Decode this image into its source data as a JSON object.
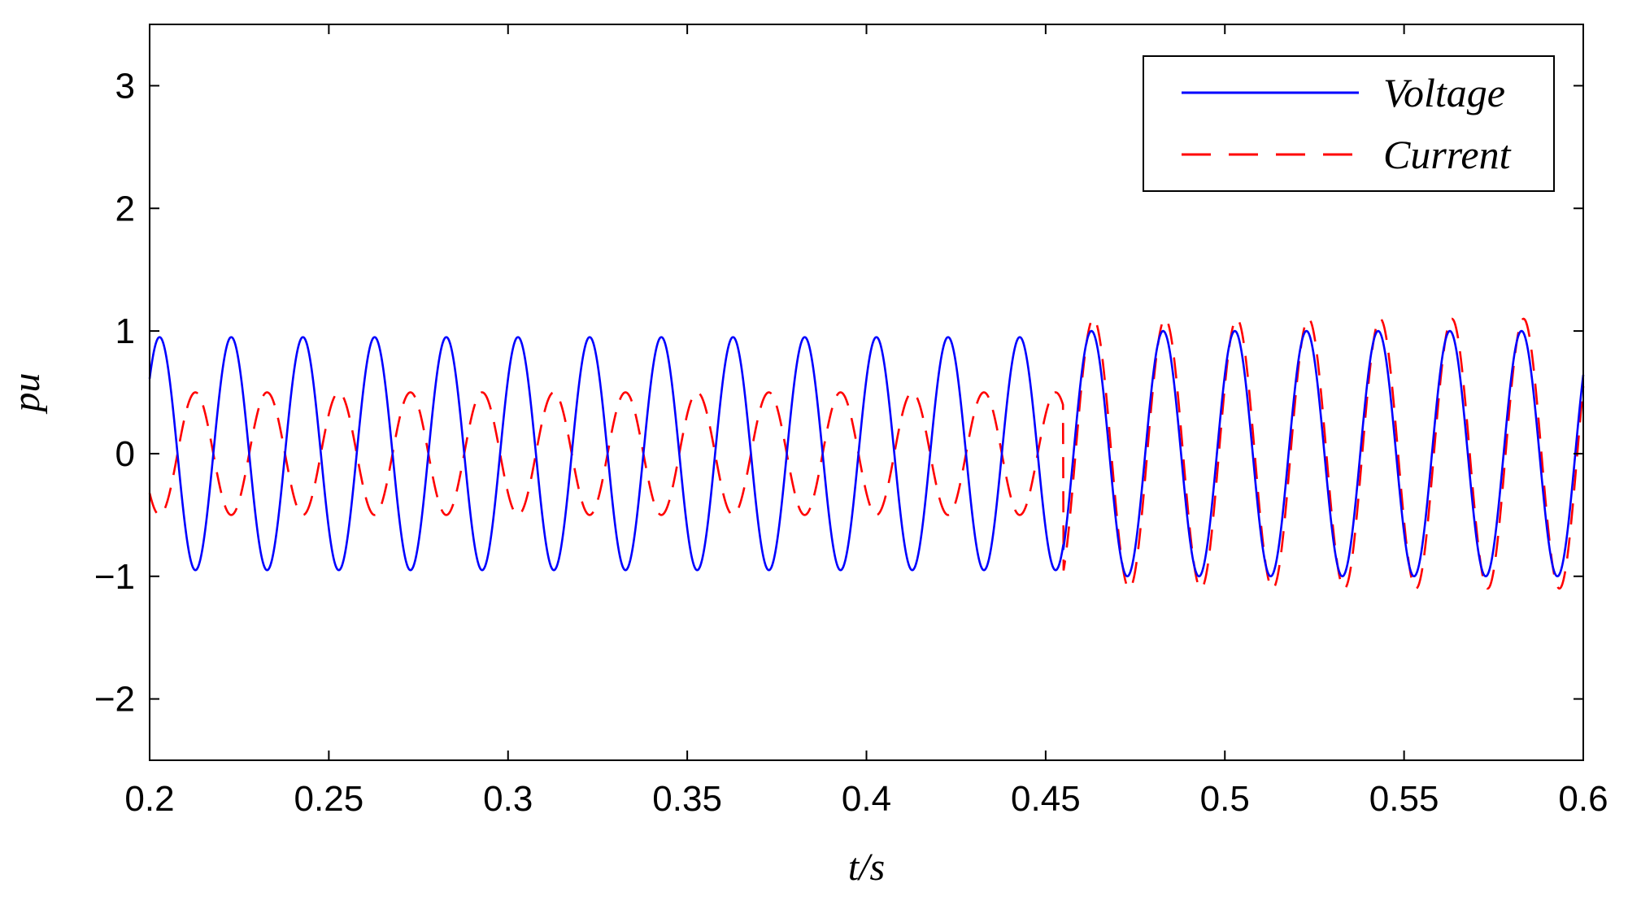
{
  "chart_data": {
    "type": "line",
    "xlabel": "t/s",
    "ylabel": "pu",
    "xlim": [
      0.2,
      0.6
    ],
    "ylim": [
      -2.5,
      3.5
    ],
    "xticks": [
      0.2,
      0.25,
      0.3,
      0.35,
      0.4,
      0.45,
      0.5,
      0.55,
      0.6
    ],
    "xtick_labels": [
      "0.2",
      "0.25",
      "0.3",
      "0.35",
      "0.4",
      "0.45",
      "0.5",
      "0.55",
      "0.6"
    ],
    "yticks": [
      3,
      2,
      1,
      0,
      -1,
      -2
    ],
    "ytick_labels": [
      "3",
      "2",
      "1",
      "0",
      "−1",
      "−2"
    ],
    "grid": false,
    "legend_position": "top-right",
    "frequency_hz": 50,
    "event_time": 0.455,
    "series": [
      {
        "name": "Voltage",
        "color": "#0000ff",
        "style": "solid",
        "amplitude_before": 0.95,
        "amplitude_after": 1.0,
        "phase_deg": 40
      },
      {
        "name": "Current",
        "color": "#ff0000",
        "style": "dashed",
        "amplitude_before": 0.5,
        "amplitude_after": 1.1,
        "phase_before_deg": 220,
        "phase_after_deg": 30
      }
    ]
  }
}
